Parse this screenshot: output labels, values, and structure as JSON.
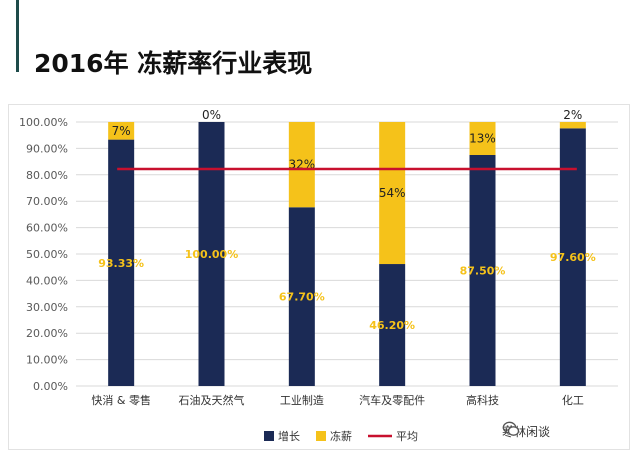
{
  "page": {
    "title": "2016年 冻薪率行业表现",
    "watermark": "寒林闲谈"
  },
  "colors": {
    "growth": "#1b2a55",
    "frozen": "#f5c21a",
    "average": "#c8102e",
    "growth_label": "#f5c21a",
    "axis_text": "#595959",
    "gridline": "#d9d9d9"
  },
  "chart_data": {
    "type": "bar",
    "stacked": true,
    "categories": [
      "快消 & 零售",
      "石油及天然气",
      "工业制造",
      "汽车及零配件",
      "高科技",
      "化工"
    ],
    "series": [
      {
        "name": "增长",
        "values": [
          93.33,
          100.0,
          67.7,
          46.2,
          87.5,
          97.6
        ],
        "labels": [
          "93.33%",
          "100.00%",
          "67.70%",
          "46.20%",
          "87.50%",
          "97.60%"
        ]
      },
      {
        "name": "冻薪",
        "values": [
          6.67,
          0.0,
          32.3,
          53.8,
          12.5,
          2.4
        ],
        "labels": [
          "7%",
          "0%",
          "32%",
          "54%",
          "13%",
          "2%"
        ]
      }
    ],
    "average": {
      "name": "平均",
      "value": 82.2
    },
    "ylim": [
      0,
      100
    ],
    "yticks": [
      0,
      10,
      20,
      30,
      40,
      50,
      60,
      70,
      80,
      90,
      100
    ],
    "ytick_labels": [
      "0.00%",
      "10.00%",
      "20.00%",
      "30.00%",
      "40.00%",
      "50.00%",
      "60.00%",
      "70.00%",
      "80.00%",
      "90.00%",
      "100.00%"
    ],
    "grid": true,
    "legend_position": "bottom"
  }
}
